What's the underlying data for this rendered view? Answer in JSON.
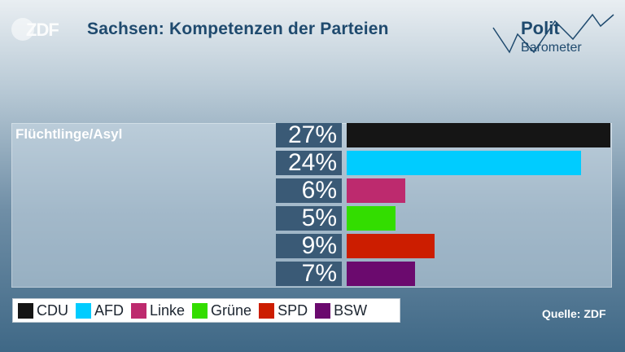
{
  "header": {
    "logo_text": "ZDF",
    "title": "Sachsen: Kompetenzen der Parteien",
    "brand_line1": "Polit",
    "brand_line2": "Barometer"
  },
  "source": "Quelle: ZDF",
  "colors": {
    "CDU": "#151515",
    "AFD": "#00ccff",
    "Linke": "#bd2a6e",
    "Grüne": "#33dd00",
    "SPD": "#cc1d00",
    "BSW": "#6b0a6e",
    "label_bg": "#3a5a76"
  },
  "chart_data": {
    "type": "bar",
    "orientation": "horizontal",
    "title": "Sachsen: Kompetenzen der Parteien",
    "category": "Flüchtlinge/Asyl",
    "categories": [
      "CDU",
      "AFD",
      "Linke",
      "Grüne",
      "SPD",
      "BSW"
    ],
    "values": [
      27,
      24,
      6,
      5,
      9,
      7
    ],
    "labels": [
      "27%",
      "24%",
      "6%",
      "5%",
      "9%",
      "7%"
    ],
    "unit": "%",
    "xlim": [
      0,
      27
    ],
    "legend_position": "bottom-left"
  }
}
